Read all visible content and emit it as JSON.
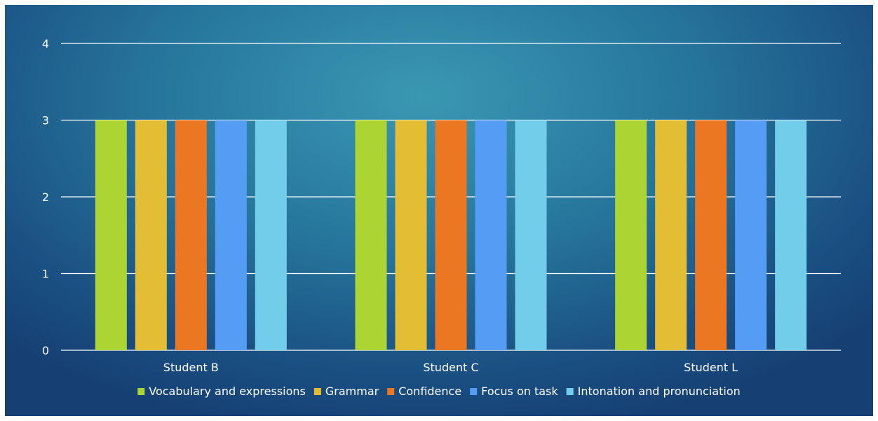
{
  "chart_data": {
    "type": "bar",
    "categories": [
      "Student B",
      "Student C",
      "Student L"
    ],
    "series": [
      {
        "name": "Vocabulary and expressions",
        "values": [
          3,
          3,
          3
        ],
        "color": "#acd433"
      },
      {
        "name": "Grammar",
        "values": [
          3,
          3,
          3
        ],
        "color": "#e3bd33"
      },
      {
        "name": "Confidence",
        "values": [
          3,
          3,
          3
        ],
        "color": "#ec7722"
      },
      {
        "name": "Focus on task",
        "values": [
          3,
          3,
          3
        ],
        "color": "#559df4"
      },
      {
        "name": "Intonation and pronunciation",
        "values": [
          3,
          3,
          3
        ],
        "color": "#72cdea"
      }
    ],
    "ylim": [
      0,
      4
    ],
    "yticks": [
      0,
      1,
      2,
      3,
      4
    ],
    "grid": true,
    "legend_position": "bottom",
    "gridline_color": "#ffffff"
  }
}
